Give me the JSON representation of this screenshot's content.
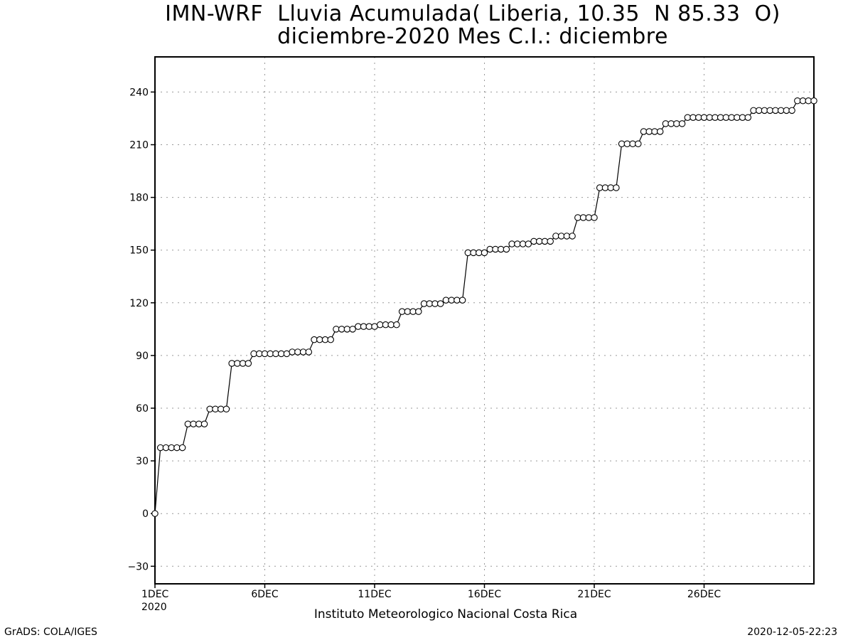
{
  "header": {
    "title_line1": "IMN-WRF  Lluvia Acumulada( Liberia, 10.35  N 85.33  O)",
    "title_line2": "diciembre-2020 Mes C.I.: diciembre"
  },
  "footer": {
    "credit": "GrADS: COLA/IGES",
    "timestamp": "2020-12-05-22:23"
  },
  "chart_data": {
    "type": "line",
    "title": "IMN-WRF  Lluvia Acumulada( Liberia, 10.35  N 85.33  O)",
    "subtitle": "diciembre-2020 Mes C.I.: diciembre",
    "xlabel": "Instituto Meteorologico Nacional Costa Rica",
    "ylabel": "",
    "x_ticks": [
      "1DEC",
      "6DEC",
      "11DEC",
      "16DEC",
      "21DEC",
      "26DEC"
    ],
    "x_tick_days": [
      1,
      6,
      11,
      16,
      21,
      26
    ],
    "x_year_label": "2020",
    "xlim": [
      1,
      31
    ],
    "y_ticks": [
      -30,
      0,
      30,
      60,
      90,
      120,
      150,
      180,
      210,
      240
    ],
    "ylim": [
      -40,
      260
    ],
    "grid": true,
    "marker": "open-circle",
    "series": [
      {
        "values": [
          0,
          37.5,
          37.5,
          37.5,
          37.5,
          37.5,
          51,
          51,
          51,
          51,
          59.5,
          59.5,
          59.5,
          59.5,
          85.5,
          85.5,
          85.5,
          85.5,
          91,
          91,
          91,
          91,
          91,
          91,
          91,
          92,
          92,
          92,
          92,
          99,
          99,
          99,
          99,
          105,
          105,
          105,
          105,
          106.5,
          106.5,
          106.5,
          106.5,
          107.5,
          107.5,
          107.5,
          107.5,
          115,
          115,
          115,
          115,
          119.5,
          119.5,
          119.5,
          119.5,
          121.5,
          121.5,
          121.5,
          121.5,
          148.5,
          148.5,
          148.5,
          148.5,
          150.5,
          150.5,
          150.5,
          150.5,
          153.5,
          153.5,
          153.5,
          153.5,
          155,
          155,
          155,
          155,
          158,
          158,
          158,
          158,
          168.5,
          168.5,
          168.5,
          168.5,
          185.5,
          185.5,
          185.5,
          185.5,
          210.5,
          210.5,
          210.5,
          210.5,
          217.5,
          217.5,
          217.5,
          217.5,
          222,
          222,
          222,
          222,
          225.5,
          225.5,
          225.5,
          225.5,
          225.5,
          225.5,
          225.5,
          225.5,
          225.5,
          225.5,
          225.5,
          225.5,
          229.5,
          229.5,
          229.5,
          229.5,
          229.5,
          229.5,
          229.5,
          229.5,
          235,
          235,
          235,
          235
        ]
      }
    ],
    "x_start_day": 1,
    "x_step_days": 0.25
  }
}
